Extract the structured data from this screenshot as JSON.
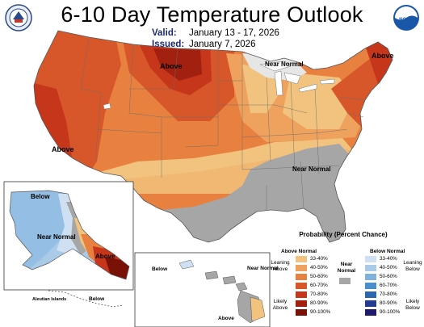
{
  "header": {
    "title": "6-10 Day Temperature Outlook",
    "valid_label": "Valid:",
    "valid_value": "January 13 - 17, 2026",
    "issued_label": "Issued:",
    "issued_value": "January 7, 2026"
  },
  "logos": {
    "left": "noaa-seal-icon",
    "right": "noaa-logo-icon",
    "right_text": "NOAA"
  },
  "map_labels": {
    "above_north": "Above",
    "near_normal_lakes": "Near Normal",
    "above_ne": "Above",
    "above_west": "Above",
    "near_normal_se": "Near Normal",
    "ak_below": "Below",
    "ak_near_normal": "Near Normal",
    "ak_above": "Above",
    "aleutian": "Aleutian Islands",
    "aleutian_below": "Below",
    "hi_below": "Below",
    "hi_near_normal": "Near Normal",
    "hi_above": "Above"
  },
  "legend": {
    "title": "Probability (Percent Chance)",
    "above_head": "Above Normal",
    "near_head": "Near Normal",
    "below_head": "Below Normal",
    "leaning_above": "Leaning Above",
    "likely_above": "Likely Above",
    "leaning_below": "Leaning Below",
    "likely_below": "Likely Below",
    "ranges": [
      "33-40%",
      "40-50%",
      "50-60%",
      "60-70%",
      "70-80%",
      "80-90%",
      "90-100%"
    ],
    "above_colors": [
      "#f2c37e",
      "#eea25d",
      "#e8813f",
      "#d8572a",
      "#c5361a",
      "#a1200f",
      "#7a1106"
    ],
    "below_colors": [
      "#cfe0f2",
      "#a9cbe8",
      "#7fb1dd",
      "#4a8ecb",
      "#2b67b0",
      "#233c8f",
      "#1e1a6b"
    ],
    "near_color": "#a6a6a6"
  }
}
